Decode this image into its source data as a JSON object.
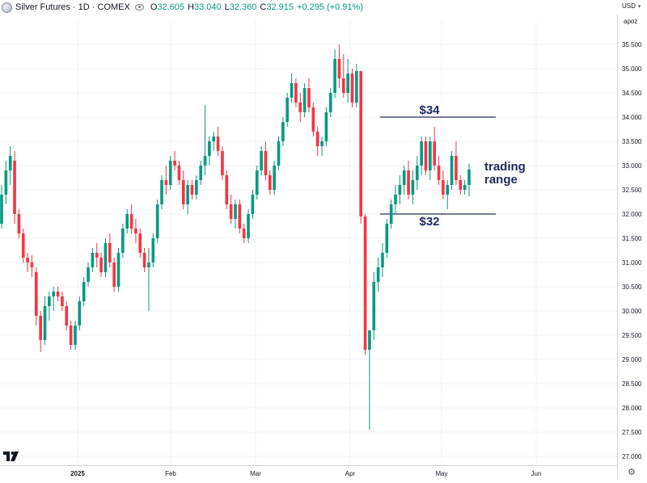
{
  "header": {
    "title": "Silver Futures · 1D · COMEX",
    "open_label": "O",
    "open_value": "32.605",
    "high_label": "H",
    "high_value": "33.040",
    "low_label": "L",
    "low_value": "32.360",
    "close_label": "C",
    "close_value": "32.915",
    "change": "+0.295 (+0.91%)"
  },
  "price_scale": {
    "currency": "USD",
    "mode": "apoz"
  },
  "colors": {
    "up": "#089981",
    "down": "#f23645",
    "annotation": "#1e2a5a",
    "grid": "#f0f3fa"
  },
  "chart_data": {
    "type": "candlestick",
    "y_ticks": [
      "35.500",
      "35.000",
      "34.500",
      "34.000",
      "33.500",
      "33.000",
      "32.500",
      "32.000",
      "31.500",
      "31.000",
      "30.500",
      "30.000",
      "29.500",
      "29.000",
      "28.500",
      "28.000",
      "27.500",
      "27.000"
    ],
    "x_ticks": [
      "2025",
      "Feb",
      "Mar",
      "Apr",
      "May",
      "Jun"
    ],
    "ylim": [
      26.7,
      35.9
    ],
    "grid": true,
    "levels": [
      {
        "label": "$34",
        "value": 34.0
      },
      {
        "label": "$32",
        "value": 32.0
      }
    ],
    "annotation": [
      "trading",
      "range"
    ],
    "candles": [
      [
        31.8,
        32.6,
        31.7,
        32.4
      ],
      [
        32.4,
        33.1,
        32.2,
        32.9
      ],
      [
        32.9,
        33.4,
        32.6,
        33.2
      ],
      [
        33.1,
        33.3,
        31.8,
        32.0
      ],
      [
        32.0,
        32.1,
        31.5,
        31.6
      ],
      [
        31.6,
        31.7,
        31.0,
        31.1
      ],
      [
        31.1,
        31.2,
        30.8,
        31.0
      ],
      [
        31.0,
        31.15,
        30.7,
        30.9
      ],
      [
        30.8,
        30.9,
        29.7,
        29.9
      ],
      [
        29.9,
        30.0,
        29.15,
        29.4
      ],
      [
        29.4,
        30.3,
        29.3,
        30.1
      ],
      [
        30.1,
        30.4,
        29.8,
        30.3
      ],
      [
        30.3,
        30.5,
        30.0,
        30.4
      ],
      [
        30.4,
        30.5,
        30.2,
        30.3
      ],
      [
        30.3,
        30.4,
        30.0,
        30.1
      ],
      [
        30.1,
        30.2,
        29.6,
        29.7
      ],
      [
        29.7,
        29.8,
        29.2,
        29.3
      ],
      [
        29.3,
        29.8,
        29.2,
        29.7
      ],
      [
        29.7,
        30.3,
        29.6,
        30.2
      ],
      [
        30.2,
        30.7,
        30.1,
        30.6
      ],
      [
        30.6,
        31.0,
        30.5,
        30.9
      ],
      [
        30.9,
        31.3,
        30.8,
        31.2
      ],
      [
        31.2,
        31.4,
        30.9,
        31.1
      ],
      [
        31.1,
        31.2,
        30.7,
        30.8
      ],
      [
        30.8,
        31.5,
        30.7,
        31.4
      ],
      [
        31.4,
        31.6,
        30.9,
        31.0
      ],
      [
        31.0,
        31.1,
        30.4,
        30.5
      ],
      [
        30.5,
        31.3,
        30.4,
        31.2
      ],
      [
        31.2,
        31.8,
        31.1,
        31.7
      ],
      [
        31.7,
        32.1,
        31.6,
        32.0
      ],
      [
        32.0,
        32.2,
        31.6,
        31.7
      ],
      [
        31.7,
        31.9,
        31.4,
        31.6
      ],
      [
        31.6,
        31.7,
        31.1,
        31.2
      ],
      [
        31.2,
        31.3,
        30.8,
        30.9
      ],
      [
        30.9,
        31.3,
        30.0,
        31.0
      ],
      [
        31.0,
        31.6,
        30.9,
        31.5
      ],
      [
        31.5,
        32.3,
        31.4,
        32.2
      ],
      [
        32.2,
        32.8,
        32.1,
        32.7
      ],
      [
        32.7,
        33.0,
        32.4,
        32.6
      ],
      [
        32.6,
        33.2,
        32.5,
        33.1
      ],
      [
        33.1,
        33.3,
        32.9,
        33.0
      ],
      [
        33.0,
        33.1,
        32.6,
        32.7
      ],
      [
        32.7,
        32.9,
        32.1,
        32.2
      ],
      [
        32.2,
        32.7,
        32.0,
        32.6
      ],
      [
        32.6,
        32.7,
        32.3,
        32.4
      ],
      [
        32.4,
        32.8,
        32.3,
        32.7
      ],
      [
        32.7,
        33.1,
        32.6,
        33.0
      ],
      [
        33.0,
        34.25,
        32.8,
        33.2
      ],
      [
        33.2,
        33.6,
        33.0,
        33.5
      ],
      [
        33.5,
        33.7,
        33.3,
        33.6
      ],
      [
        33.6,
        33.8,
        33.2,
        33.3
      ],
      [
        33.3,
        33.4,
        32.7,
        32.8
      ],
      [
        32.8,
        32.9,
        32.1,
        32.2
      ],
      [
        32.2,
        32.4,
        31.8,
        31.9
      ],
      [
        31.9,
        32.3,
        31.7,
        32.2
      ],
      [
        32.2,
        32.3,
        31.6,
        31.7
      ],
      [
        31.7,
        31.8,
        31.4,
        31.5
      ],
      [
        31.5,
        32.1,
        31.4,
        32.0
      ],
      [
        32.0,
        32.5,
        31.9,
        32.4
      ],
      [
        32.4,
        33.0,
        32.3,
        32.9
      ],
      [
        32.9,
        33.4,
        32.8,
        33.3
      ],
      [
        33.3,
        33.5,
        32.7,
        32.8
      ],
      [
        32.8,
        32.9,
        32.4,
        32.5
      ],
      [
        32.5,
        33.1,
        32.4,
        33.0
      ],
      [
        33.0,
        33.6,
        32.9,
        33.5
      ],
      [
        33.5,
        34.0,
        33.4,
        33.9
      ],
      [
        33.9,
        34.5,
        33.8,
        34.4
      ],
      [
        34.4,
        34.9,
        34.3,
        34.7
      ],
      [
        34.7,
        34.8,
        34.2,
        34.3
      ],
      [
        34.3,
        34.5,
        33.9,
        34.1
      ],
      [
        34.1,
        34.7,
        34.0,
        34.6
      ],
      [
        34.6,
        34.8,
        34.1,
        34.2
      ],
      [
        34.2,
        34.3,
        33.6,
        33.7
      ],
      [
        33.7,
        33.8,
        33.2,
        33.4
      ],
      [
        33.4,
        33.6,
        33.2,
        33.5
      ],
      [
        33.5,
        34.2,
        33.4,
        34.1
      ],
      [
        34.1,
        34.6,
        34.0,
        34.5
      ],
      [
        34.5,
        35.4,
        34.4,
        35.2
      ],
      [
        35.2,
        35.5,
        34.6,
        34.8
      ],
      [
        34.8,
        35.3,
        34.4,
        34.5
      ],
      [
        34.5,
        35.2,
        34.3,
        34.9
      ],
      [
        34.9,
        35.0,
        34.2,
        34.3
      ],
      [
        34.3,
        35.1,
        34.2,
        34.95
      ],
      [
        34.95,
        34.95,
        31.8,
        31.95
      ],
      [
        31.95,
        32.0,
        29.1,
        29.2
      ],
      [
        29.2,
        29.6,
        27.55,
        29.6
      ],
      [
        29.6,
        30.8,
        29.4,
        30.6
      ],
      [
        30.6,
        31.1,
        30.4,
        30.9
      ],
      [
        30.9,
        31.4,
        30.7,
        31.2
      ],
      [
        31.2,
        31.9,
        31.1,
        31.8
      ],
      [
        31.8,
        32.3,
        31.7,
        32.2
      ],
      [
        32.2,
        32.6,
        32.0,
        32.4
      ],
      [
        32.4,
        32.8,
        32.2,
        32.6
      ],
      [
        32.6,
        33.0,
        32.4,
        32.9
      ],
      [
        32.9,
        33.1,
        32.3,
        32.4
      ],
      [
        32.4,
        32.9,
        32.2,
        32.7
      ],
      [
        32.7,
        33.2,
        32.5,
        33.0
      ],
      [
        33.0,
        33.6,
        32.8,
        33.5
      ],
      [
        33.5,
        33.6,
        32.8,
        32.9
      ],
      [
        32.9,
        33.6,
        32.7,
        33.5
      ],
      [
        33.5,
        33.8,
        32.9,
        33.0
      ],
      [
        33.0,
        33.2,
        32.6,
        32.7
      ],
      [
        32.7,
        32.9,
        32.3,
        32.4
      ],
      [
        32.4,
        32.7,
        32.1,
        32.6
      ],
      [
        32.6,
        33.3,
        32.5,
        33.2
      ],
      [
        33.2,
        33.5,
        32.6,
        32.7
      ],
      [
        32.7,
        32.8,
        32.4,
        32.5
      ],
      [
        32.5,
        32.7,
        32.4,
        32.6
      ],
      [
        32.6,
        33.04,
        32.36,
        32.92
      ]
    ]
  }
}
